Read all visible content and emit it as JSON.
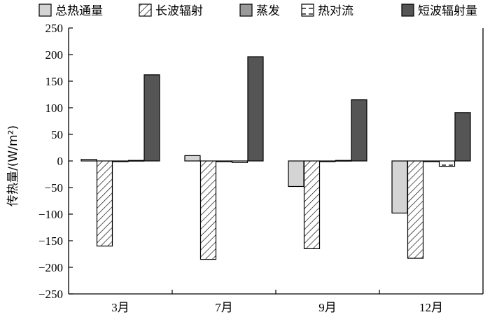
{
  "chart_data": {
    "type": "bar",
    "title": "",
    "xlabel": "",
    "ylabel": "传热量/(W/m²)",
    "ylim": [
      -250,
      250
    ],
    "yticks": [
      250,
      200,
      150,
      100,
      50,
      0,
      -50,
      -100,
      -150,
      -200,
      -250
    ],
    "ytick_labels": [
      "250",
      "200",
      "150",
      "100",
      "50",
      "0",
      "−50",
      "−100",
      "−150",
      "−200",
      "−250"
    ],
    "categories": [
      "3月",
      "7月",
      "9月",
      "12月"
    ],
    "legend_position": "top",
    "grid": false,
    "series": [
      {
        "name": "总热通量",
        "fill": "#d4d4d4",
        "pattern": "solid",
        "values": [
          3,
          10,
          -48,
          -98
        ]
      },
      {
        "name": "长波辐射",
        "fill": "#ffffff",
        "pattern": "diagonal-hatch",
        "values": [
          -160,
          -185,
          -165,
          -183
        ]
      },
      {
        "name": "蒸发",
        "fill": "#9a9a9a",
        "pattern": "solid",
        "values": [
          -1,
          -1,
          -1,
          -1
        ]
      },
      {
        "name": "热对流",
        "fill": "#ffffff",
        "pattern": "horizontal-dash",
        "values": [
          1,
          -3,
          1,
          -10
        ]
      },
      {
        "name": "短波辐射量",
        "fill": "#555555",
        "pattern": "solid",
        "values": [
          162,
          196,
          115,
          91
        ]
      }
    ]
  }
}
